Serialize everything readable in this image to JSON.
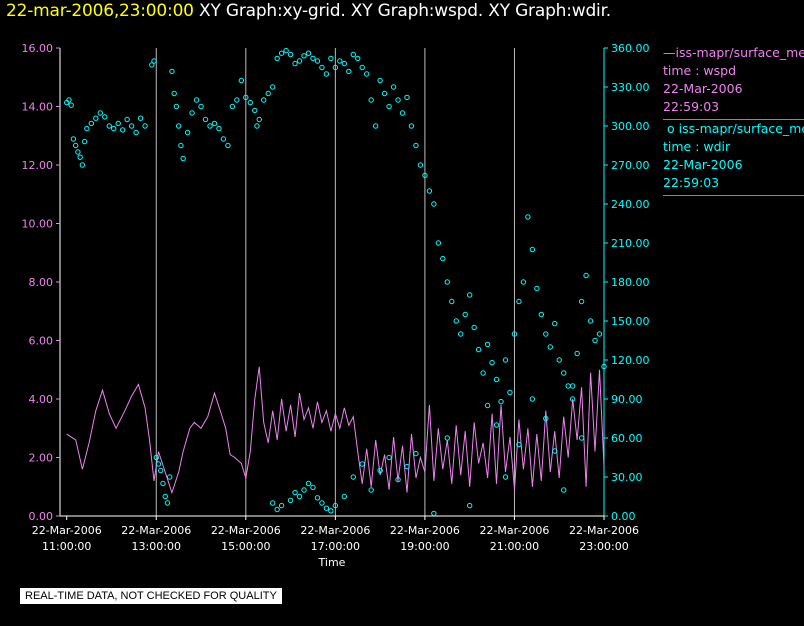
{
  "title": {
    "date": "22-mar-2006,23:00:00",
    "rest": "XY Graph:xy-grid.  XY Graph:wspd.  XY Graph:wdir."
  },
  "colors": {
    "wspd": "#ee82ee",
    "wdir": "#00ffff",
    "axis": "#ffffff",
    "grid": "#bbbbbb",
    "title_date": "#ffff00"
  },
  "legend": {
    "wspd": {
      "name": "iss-mapr/surface_met",
      "var": "time : wspd",
      "date": "22-Mar-2006",
      "time": "22:59:03"
    },
    "wdir": {
      "name": "iss-mapr/surface_met",
      "var": "time : wdir",
      "date": "22-Mar-2006",
      "time": "22:59:03"
    }
  },
  "footer_note": "REAL-TIME DATA, NOT CHECKED FOR QUALITY",
  "chart_data": {
    "type": "line+scatter",
    "title": "22-mar-2006,23:00:00  XY Graph:xy-grid.  XY Graph:wspd.  XY Graph:wdir.",
    "xlabel": "Time",
    "xlim": [
      10.85,
      23.0
    ],
    "x_ticks": [
      {
        "value": 11,
        "date": "22-Mar-2006",
        "time": "11:00:00"
      },
      {
        "value": 13,
        "date": "22-Mar-2006",
        "time": "13:00:00"
      },
      {
        "value": 15,
        "date": "22-Mar-2006",
        "time": "15:00:00"
      },
      {
        "value": 17,
        "date": "22-Mar-2006",
        "time": "17:00:00"
      },
      {
        "value": 19,
        "date": "22-Mar-2006",
        "time": "19:00:00"
      },
      {
        "value": 21,
        "date": "22-Mar-2006",
        "time": "21:00:00"
      },
      {
        "value": 23,
        "date": "22-Mar-2006",
        "time": "23:00:00"
      }
    ],
    "grid_x": [
      13,
      15,
      17,
      19,
      21,
      23
    ],
    "y_left": {
      "label": "wspd",
      "lim": [
        0,
        16
      ],
      "ticks": [
        "0.00",
        "2.00",
        "4.00",
        "6.00",
        "8.00",
        "10.00",
        "12.00",
        "14.00",
        "16.00"
      ]
    },
    "y_right": {
      "label": "wdir",
      "lim": [
        0,
        360
      ],
      "ticks": [
        "0.00",
        "30.00",
        "60.00",
        "90.00",
        "120.00",
        "150.00",
        "180.00",
        "210.00",
        "240.00",
        "270.00",
        "300.00",
        "330.00",
        "360.00"
      ]
    },
    "series": [
      {
        "name": "wspd",
        "kind": "line",
        "axis": "left",
        "points": [
          [
            11.0,
            2.8
          ],
          [
            11.2,
            2.6
          ],
          [
            11.35,
            1.6
          ],
          [
            11.5,
            2.5
          ],
          [
            11.65,
            3.6
          ],
          [
            11.8,
            4.3
          ],
          [
            11.95,
            3.5
          ],
          [
            12.1,
            3.0
          ],
          [
            12.3,
            3.6
          ],
          [
            12.45,
            4.1
          ],
          [
            12.6,
            4.5
          ],
          [
            12.75,
            3.7
          ],
          [
            12.85,
            2.6
          ],
          [
            12.95,
            1.2
          ],
          [
            13.05,
            2.2
          ],
          [
            13.2,
            1.5
          ],
          [
            13.35,
            0.8
          ],
          [
            13.5,
            1.5
          ],
          [
            13.6,
            2.2
          ],
          [
            13.75,
            3.0
          ],
          [
            13.85,
            3.2
          ],
          [
            14.0,
            3.0
          ],
          [
            14.15,
            3.4
          ],
          [
            14.3,
            4.2
          ],
          [
            14.45,
            3.5
          ],
          [
            14.55,
            3.0
          ],
          [
            14.65,
            2.1
          ],
          [
            14.75,
            2.0
          ],
          [
            14.9,
            1.8
          ],
          [
            15.0,
            1.3
          ],
          [
            15.1,
            2.2
          ],
          [
            15.2,
            4.0
          ],
          [
            15.3,
            5.1
          ],
          [
            15.4,
            3.2
          ],
          [
            15.5,
            2.5
          ],
          [
            15.6,
            3.6
          ],
          [
            15.7,
            2.6
          ],
          [
            15.8,
            4.0
          ],
          [
            15.9,
            2.9
          ],
          [
            16.0,
            3.8
          ],
          [
            16.1,
            2.7
          ],
          [
            16.2,
            4.2
          ],
          [
            16.3,
            3.3
          ],
          [
            16.4,
            3.7
          ],
          [
            16.5,
            3.0
          ],
          [
            16.6,
            3.9
          ],
          [
            16.7,
            3.2
          ],
          [
            16.8,
            3.6
          ],
          [
            16.9,
            2.9
          ],
          [
            17.0,
            3.5
          ],
          [
            17.1,
            3.0
          ],
          [
            17.2,
            3.7
          ],
          [
            17.3,
            3.1
          ],
          [
            17.4,
            3.4
          ],
          [
            17.5,
            2.2
          ],
          [
            17.6,
            1.1
          ],
          [
            17.7,
            2.3
          ],
          [
            17.8,
            1.0
          ],
          [
            17.9,
            2.6
          ],
          [
            18.0,
            1.4
          ],
          [
            18.1,
            2.1
          ],
          [
            18.2,
            0.9
          ],
          [
            18.3,
            2.7
          ],
          [
            18.4,
            1.2
          ],
          [
            18.5,
            2.4
          ],
          [
            18.6,
            0.8
          ],
          [
            18.7,
            2.8
          ],
          [
            18.8,
            1.3
          ],
          [
            18.9,
            2.0
          ],
          [
            19.0,
            1.5
          ],
          [
            19.1,
            3.8
          ],
          [
            19.2,
            1.2
          ],
          [
            19.3,
            3.0
          ],
          [
            19.4,
            1.6
          ],
          [
            19.5,
            2.6
          ],
          [
            19.6,
            1.1
          ],
          [
            19.7,
            3.1
          ],
          [
            19.8,
            1.4
          ],
          [
            19.9,
            2.9
          ],
          [
            20.0,
            1.0
          ],
          [
            20.1,
            3.2
          ],
          [
            20.2,
            1.8
          ],
          [
            20.3,
            2.5
          ],
          [
            20.4,
            1.3
          ],
          [
            20.5,
            3.5
          ],
          [
            20.6,
            1.1
          ],
          [
            20.7,
            3.8
          ],
          [
            20.8,
            1.5
          ],
          [
            20.9,
            2.7
          ],
          [
            21.0,
            0.9
          ],
          [
            21.1,
            3.3
          ],
          [
            21.2,
            1.6
          ],
          [
            21.3,
            3.0
          ],
          [
            21.4,
            1.0
          ],
          [
            21.5,
            2.8
          ],
          [
            21.6,
            1.2
          ],
          [
            21.7,
            3.6
          ],
          [
            21.8,
            1.5
          ],
          [
            21.9,
            2.9
          ],
          [
            22.0,
            1.3
          ],
          [
            22.1,
            3.4
          ],
          [
            22.2,
            2.0
          ],
          [
            22.3,
            4.0
          ],
          [
            22.4,
            2.6
          ],
          [
            22.5,
            4.4
          ],
          [
            22.6,
            1.0
          ],
          [
            22.7,
            4.9
          ],
          [
            22.8,
            2.2
          ],
          [
            22.9,
            5.0
          ],
          [
            23.0,
            1.7
          ]
        ]
      },
      {
        "name": "wdir",
        "kind": "scatter",
        "axis": "right",
        "points": [
          [
            11.0,
            318
          ],
          [
            11.05,
            320
          ],
          [
            11.1,
            316
          ],
          [
            11.15,
            290
          ],
          [
            11.2,
            285
          ],
          [
            11.25,
            280
          ],
          [
            11.3,
            276
          ],
          [
            11.35,
            270
          ],
          [
            11.4,
            288
          ],
          [
            11.45,
            298
          ],
          [
            11.55,
            302
          ],
          [
            11.65,
            306
          ],
          [
            11.75,
            310
          ],
          [
            11.85,
            307
          ],
          [
            11.95,
            300
          ],
          [
            12.05,
            298
          ],
          [
            12.15,
            302
          ],
          [
            12.25,
            297
          ],
          [
            12.35,
            305
          ],
          [
            12.45,
            300
          ],
          [
            12.55,
            295
          ],
          [
            12.65,
            306
          ],
          [
            12.75,
            300
          ],
          [
            12.9,
            347
          ],
          [
            12.95,
            350
          ],
          [
            13.0,
            45
          ],
          [
            13.05,
            40
          ],
          [
            13.1,
            35
          ],
          [
            13.15,
            25
          ],
          [
            13.2,
            15
          ],
          [
            13.25,
            10
          ],
          [
            13.3,
            30
          ],
          [
            13.35,
            342
          ],
          [
            13.4,
            325
          ],
          [
            13.45,
            315
          ],
          [
            13.5,
            300
          ],
          [
            13.55,
            285
          ],
          [
            13.6,
            275
          ],
          [
            13.7,
            295
          ],
          [
            13.8,
            310
          ],
          [
            13.9,
            320
          ],
          [
            14.0,
            315
          ],
          [
            14.1,
            305
          ],
          [
            14.2,
            300
          ],
          [
            14.3,
            302
          ],
          [
            14.4,
            298
          ],
          [
            14.5,
            290
          ],
          [
            14.6,
            285
          ],
          [
            14.7,
            315
          ],
          [
            14.8,
            320
          ],
          [
            14.9,
            335
          ],
          [
            15.0,
            322
          ],
          [
            15.1,
            318
          ],
          [
            15.2,
            312
          ],
          [
            15.25,
            300
          ],
          [
            15.3,
            305
          ],
          [
            15.4,
            320
          ],
          [
            15.5,
            325
          ],
          [
            15.6,
            330
          ],
          [
            15.7,
            352
          ],
          [
            15.8,
            356
          ],
          [
            15.9,
            358
          ],
          [
            16.0,
            355
          ],
          [
            16.1,
            348
          ],
          [
            16.2,
            350
          ],
          [
            16.3,
            354
          ],
          [
            16.4,
            356
          ],
          [
            16.5,
            352
          ],
          [
            16.6,
            350
          ],
          [
            16.7,
            345
          ],
          [
            16.8,
            340
          ],
          [
            16.9,
            352
          ],
          [
            17.0,
            345
          ],
          [
            17.1,
            350
          ],
          [
            17.2,
            348
          ],
          [
            17.3,
            342
          ],
          [
            17.4,
            355
          ],
          [
            17.5,
            352
          ],
          [
            17.6,
            345
          ],
          [
            17.7,
            340
          ],
          [
            17.8,
            320
          ],
          [
            17.9,
            300
          ],
          [
            18.0,
            335
          ],
          [
            18.1,
            325
          ],
          [
            18.2,
            315
          ],
          [
            18.3,
            330
          ],
          [
            18.4,
            320
          ],
          [
            18.5,
            310
          ],
          [
            18.6,
            322
          ],
          [
            18.7,
            300
          ],
          [
            18.8,
            285
          ],
          [
            18.9,
            270
          ],
          [
            19.0,
            262
          ],
          [
            19.1,
            250
          ],
          [
            19.2,
            240
          ],
          [
            19.3,
            210
          ],
          [
            19.4,
            198
          ],
          [
            19.5,
            180
          ],
          [
            19.6,
            165
          ],
          [
            19.7,
            150
          ],
          [
            19.8,
            140
          ],
          [
            19.9,
            155
          ],
          [
            20.0,
            170
          ],
          [
            20.1,
            145
          ],
          [
            20.2,
            128
          ],
          [
            20.3,
            110
          ],
          [
            20.4,
            132
          ],
          [
            20.5,
            118
          ],
          [
            20.6,
            105
          ],
          [
            20.7,
            88
          ],
          [
            20.8,
            120
          ],
          [
            20.9,
            95
          ],
          [
            21.0,
            140
          ],
          [
            21.1,
            165
          ],
          [
            21.2,
            180
          ],
          [
            21.3,
            230
          ],
          [
            21.4,
            205
          ],
          [
            21.5,
            175
          ],
          [
            21.6,
            155
          ],
          [
            21.7,
            140
          ],
          [
            21.8,
            130
          ],
          [
            21.9,
            148
          ],
          [
            22.0,
            120
          ],
          [
            22.1,
            110
          ],
          [
            22.2,
            100
          ],
          [
            22.3,
            90
          ],
          [
            22.4,
            125
          ],
          [
            22.5,
            165
          ],
          [
            22.6,
            185
          ],
          [
            22.7,
            150
          ],
          [
            22.8,
            135
          ],
          [
            22.9,
            140
          ],
          [
            23.0,
            115
          ],
          [
            15.6,
            10
          ],
          [
            15.7,
            5
          ],
          [
            15.8,
            8
          ],
          [
            16.0,
            12
          ],
          [
            16.1,
            18
          ],
          [
            16.2,
            15
          ],
          [
            16.3,
            20
          ],
          [
            16.4,
            25
          ],
          [
            16.5,
            22
          ],
          [
            16.6,
            14
          ],
          [
            16.7,
            10
          ],
          [
            16.8,
            6
          ],
          [
            16.9,
            4
          ],
          [
            17.0,
            8
          ],
          [
            17.2,
            15
          ],
          [
            17.4,
            30
          ],
          [
            17.6,
            40
          ],
          [
            17.8,
            20
          ],
          [
            18.0,
            35
          ],
          [
            18.2,
            45
          ],
          [
            18.4,
            28
          ],
          [
            18.6,
            38
          ],
          [
            18.8,
            48
          ],
          [
            19.2,
            2
          ],
          [
            19.5,
            60
          ],
          [
            20.0,
            8
          ],
          [
            20.4,
            85
          ],
          [
            20.6,
            70
          ],
          [
            20.8,
            30
          ],
          [
            21.1,
            55
          ],
          [
            21.4,
            90
          ],
          [
            21.7,
            75
          ],
          [
            21.9,
            50
          ],
          [
            22.1,
            20
          ],
          [
            22.3,
            100
          ],
          [
            22.5,
            60
          ]
        ]
      }
    ],
    "legend": [
      "iss-mapr/surface_met time : wspd",
      "iss-mapr/surface_met time : wdir"
    ]
  }
}
